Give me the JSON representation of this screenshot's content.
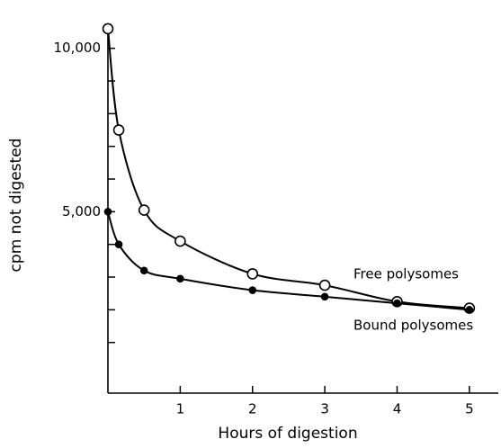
{
  "chart_data": {
    "type": "line",
    "x_label": "Hours of digestion",
    "y_label": "cpm not digested",
    "series": [
      {
        "name": "Free polysomes",
        "color": "#000000",
        "marker": "open",
        "x": [
          0,
          0.15,
          0.5,
          1,
          2,
          3,
          4,
          5
        ],
        "values": [
          10600,
          7500,
          5050,
          4100,
          3100,
          2750,
          2250,
          2050
        ]
      },
      {
        "name": "Bound polysomes",
        "color": "#000000",
        "marker": "filled",
        "x": [
          0,
          0.15,
          0.5,
          1,
          2,
          3,
          4,
          5
        ],
        "values": [
          5000,
          4000,
          3200,
          2950,
          2600,
          2400,
          2200,
          2000
        ]
      }
    ],
    "xlim": [
      0,
      5.4
    ],
    "ylim": [
      -550,
      10900
    ],
    "xticks": [
      1,
      2,
      3,
      4,
      5
    ],
    "yticks": [
      {
        "value": 5000,
        "label": "5,000"
      },
      {
        "value": 10000,
        "label": "10,000"
      }
    ],
    "yminorticks": [
      1000,
      2000,
      3000,
      4000,
      6000,
      7000,
      8000,
      9000
    ]
  }
}
